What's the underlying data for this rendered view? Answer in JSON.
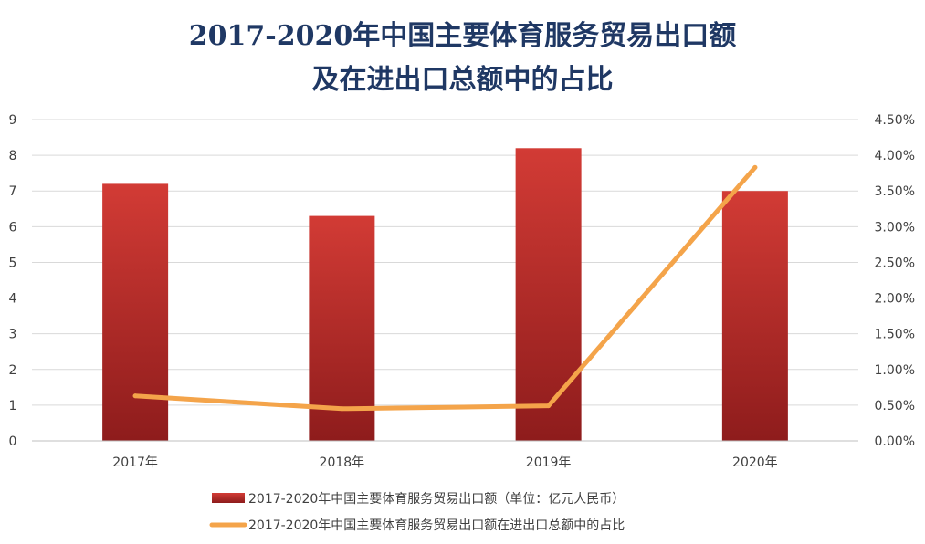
{
  "chart_data": {
    "type": "bar+line",
    "title_lines": [
      "2017-2020年中国主要体育服务贸易出口额",
      "及在进出口总额中的占比"
    ],
    "categories": [
      "2017年",
      "2018年",
      "2019年",
      "2020年"
    ],
    "series": [
      {
        "name": "2017-2020年中国主要体育服务贸易出口额（单位：亿元人民币）",
        "type": "bar",
        "axis": "left",
        "values": [
          7.2,
          6.3,
          8.2,
          7.0
        ],
        "color": "#c9302c"
      },
      {
        "name": "2017-2020年中国主要体育服务贸易出口额在进出口总额中的占比",
        "type": "line",
        "axis": "right",
        "values": [
          0.0063,
          0.0045,
          0.0049,
          0.0383
        ],
        "color": "#f4a44a"
      }
    ],
    "y_left": {
      "min": 0,
      "max": 9,
      "step": 1,
      "ticks": [
        "0",
        "1",
        "2",
        "3",
        "4",
        "5",
        "6",
        "7",
        "8",
        "9"
      ]
    },
    "y_right": {
      "min": 0,
      "max": 0.045,
      "step": 0.005,
      "ticks": [
        "0.00%",
        "0.50%",
        "1.00%",
        "1.50%",
        "2.00%",
        "2.50%",
        "3.00%",
        "3.50%",
        "4.00%",
        "4.50%"
      ]
    },
    "grid": true,
    "legend_position": "bottom"
  }
}
